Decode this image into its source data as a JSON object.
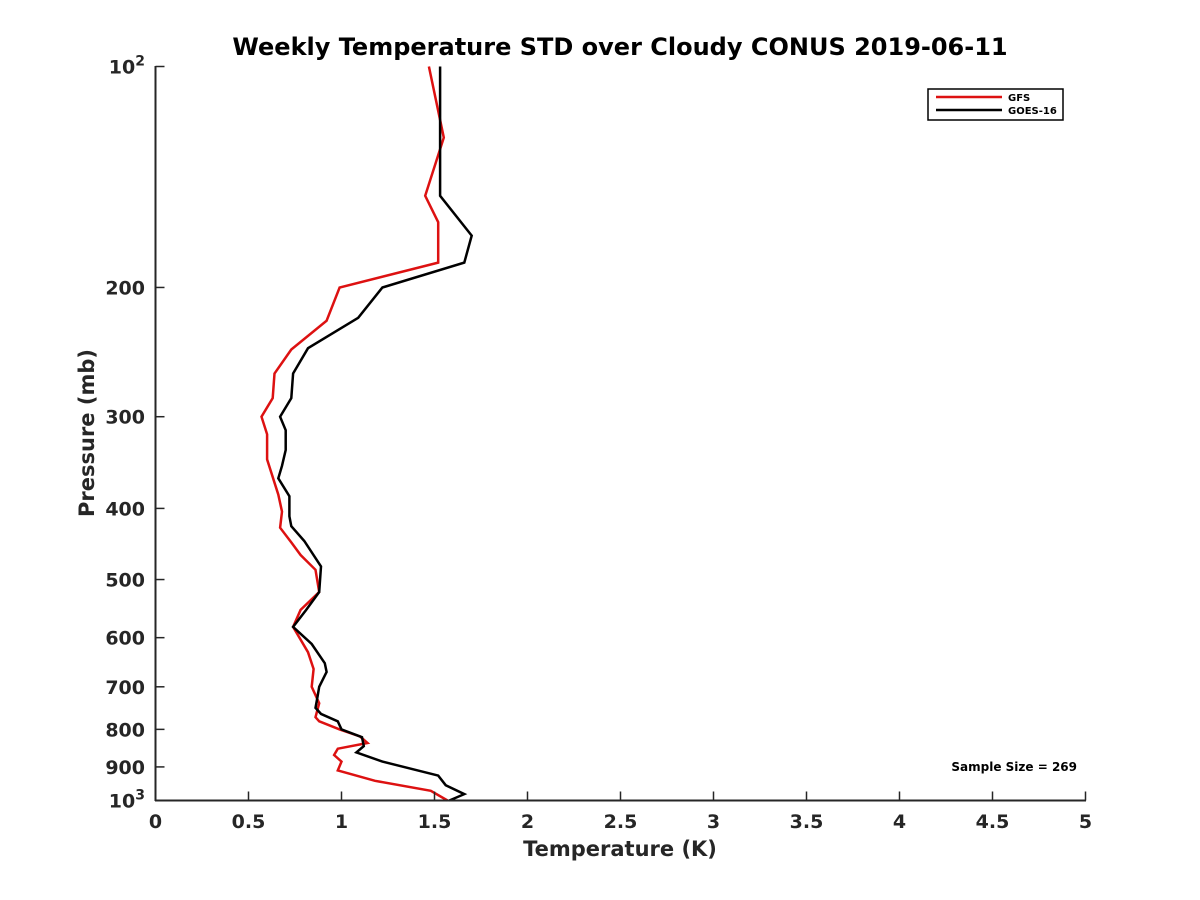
{
  "chart_data": {
    "type": "line",
    "title": "Weekly Temperature STD over Cloudy CONUS 2019-06-11",
    "xlabel": "Temperature (K)",
    "ylabel": "Pressure (mb)",
    "xlim": [
      0,
      5
    ],
    "ylim": [
      100,
      1000
    ],
    "yscale": "log",
    "y_reversed": true,
    "grid": false,
    "legend_position": "top-right",
    "x_ticks": [
      {
        "value": 0,
        "label": "0"
      },
      {
        "value": 0.5,
        "label": "0.5"
      },
      {
        "value": 1,
        "label": "1"
      },
      {
        "value": 1.5,
        "label": "1.5"
      },
      {
        "value": 2,
        "label": "2"
      },
      {
        "value": 2.5,
        "label": "2.5"
      },
      {
        "value": 3,
        "label": "3"
      },
      {
        "value": 3.5,
        "label": "3.5"
      },
      {
        "value": 4,
        "label": "4"
      },
      {
        "value": 4.5,
        "label": "4.5"
      },
      {
        "value": 5,
        "label": "5"
      }
    ],
    "y_ticks": [
      {
        "value": 100,
        "base": "10",
        "exp": "2"
      },
      {
        "value": 200,
        "base": "200",
        "exp": ""
      },
      {
        "value": 300,
        "base": "300",
        "exp": ""
      },
      {
        "value": 400,
        "base": "400",
        "exp": ""
      },
      {
        "value": 500,
        "base": "500",
        "exp": ""
      },
      {
        "value": 600,
        "base": "600",
        "exp": ""
      },
      {
        "value": 700,
        "base": "700",
        "exp": ""
      },
      {
        "value": 800,
        "base": "800",
        "exp": ""
      },
      {
        "value": 900,
        "base": "900",
        "exp": ""
      },
      {
        "value": 1000,
        "base": "10",
        "exp": "3"
      }
    ],
    "annotation": "Sample Size = 269",
    "series": [
      {
        "name": "GFS",
        "color": "#dd1111",
        "points": [
          [
            1.47,
            100
          ],
          [
            1.55,
            125
          ],
          [
            1.45,
            150
          ],
          [
            1.52,
            163
          ],
          [
            1.52,
            185
          ],
          [
            0.99,
            200
          ],
          [
            0.92,
            222
          ],
          [
            0.73,
            243
          ],
          [
            0.64,
            262
          ],
          [
            0.63,
            283
          ],
          [
            0.57,
            300
          ],
          [
            0.6,
            317
          ],
          [
            0.6,
            343
          ],
          [
            0.66,
            383
          ],
          [
            0.68,
            404
          ],
          [
            0.67,
            425
          ],
          [
            0.73,
            445
          ],
          [
            0.78,
            463
          ],
          [
            0.86,
            485
          ],
          [
            0.88,
            520
          ],
          [
            0.78,
            550
          ],
          [
            0.74,
            580
          ],
          [
            0.82,
            628
          ],
          [
            0.85,
            662
          ],
          [
            0.84,
            700
          ],
          [
            0.88,
            737
          ],
          [
            0.86,
            770
          ],
          [
            0.88,
            780
          ],
          [
            0.99,
            800
          ],
          [
            1.1,
            818
          ],
          [
            1.14,
            835
          ],
          [
            0.98,
            850
          ],
          [
            0.96,
            867
          ],
          [
            1.0,
            885
          ],
          [
            0.98,
            910
          ],
          [
            1.18,
            940
          ],
          [
            1.48,
            970
          ],
          [
            1.57,
            1000
          ]
        ]
      },
      {
        "name": "GOES-16",
        "color": "#000000",
        "points": [
          [
            1.53,
            100
          ],
          [
            1.53,
            125
          ],
          [
            1.53,
            150
          ],
          [
            1.7,
            170
          ],
          [
            1.66,
            185
          ],
          [
            1.22,
            200
          ],
          [
            1.09,
            220
          ],
          [
            0.82,
            242
          ],
          [
            0.74,
            262
          ],
          [
            0.73,
            283
          ],
          [
            0.67,
            300
          ],
          [
            0.7,
            313
          ],
          [
            0.7,
            333
          ],
          [
            0.68,
            350
          ],
          [
            0.66,
            364
          ],
          [
            0.72,
            385
          ],
          [
            0.72,
            410
          ],
          [
            0.73,
            423
          ],
          [
            0.8,
            443
          ],
          [
            0.89,
            480
          ],
          [
            0.88,
            520
          ],
          [
            0.81,
            550
          ],
          [
            0.74,
            580
          ],
          [
            0.84,
            612
          ],
          [
            0.91,
            650
          ],
          [
            0.92,
            668
          ],
          [
            0.88,
            700
          ],
          [
            0.87,
            725
          ],
          [
            0.86,
            748
          ],
          [
            0.89,
            762
          ],
          [
            0.98,
            780
          ],
          [
            1.0,
            800
          ],
          [
            1.11,
            820
          ],
          [
            1.12,
            843
          ],
          [
            1.08,
            860
          ],
          [
            1.22,
            885
          ],
          [
            1.52,
            925
          ],
          [
            1.56,
            953
          ],
          [
            1.66,
            980
          ],
          [
            1.58,
            1000
          ]
        ]
      }
    ]
  }
}
